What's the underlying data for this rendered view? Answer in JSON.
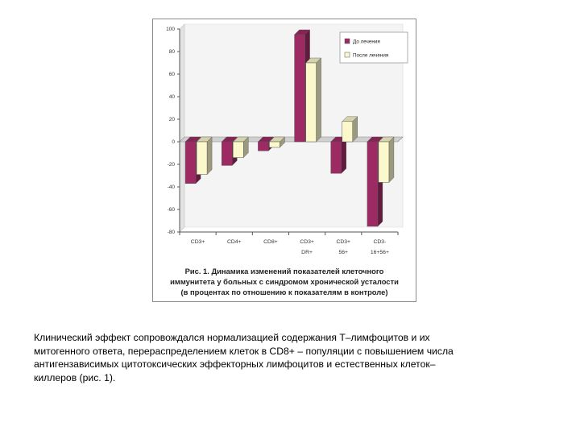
{
  "chart_data": {
    "type": "bar",
    "categories": [
      "CD3+",
      "CD4+",
      "CD8+",
      "CD3+ DR+",
      "CD3+ 56+",
      "CD3- 16+56+"
    ],
    "category_lines": [
      [
        "CD3+"
      ],
      [
        "CD4+"
      ],
      [
        "CD8+"
      ],
      [
        "CD3+",
        "DR+"
      ],
      [
        "CD3+",
        "56+"
      ],
      [
        "CD3-",
        "16+56+"
      ]
    ],
    "series": [
      {
        "name": "До лечения",
        "values": [
          -37,
          -21,
          -8,
          95,
          -28,
          -75
        ],
        "color": "#9e2a64"
      },
      {
        "name": "После лечения",
        "values": [
          -29,
          -14,
          -5,
          70,
          18,
          -36
        ],
        "color": "#fbf8cc"
      }
    ],
    "ylim": [
      -80,
      100
    ],
    "yticks": [
      "100",
      "80",
      "60",
      "40",
      "20",
      "0",
      "-20",
      "-40",
      "-60",
      "-80"
    ],
    "legend_position": "top-right",
    "grid": false,
    "caption": [
      "Рис. 1. Динамика изменений показателей клеточного",
      "иммунитета у больных с синдромом хронической усталости",
      "(в процентах по отношению к показателям в контроле)"
    ]
  },
  "body_text": [
    "Клинический эффект сопровождался нормализацией содержания Т–лимфоцитов и их",
    "митогенного ответа, перераспределением клеток в CD8+ – популяции с повышением числа",
    "антигензависимых цитотоксических эффекторных лимфоцитов и естественных клеток–",
    "киллеров (рис. 1)."
  ]
}
